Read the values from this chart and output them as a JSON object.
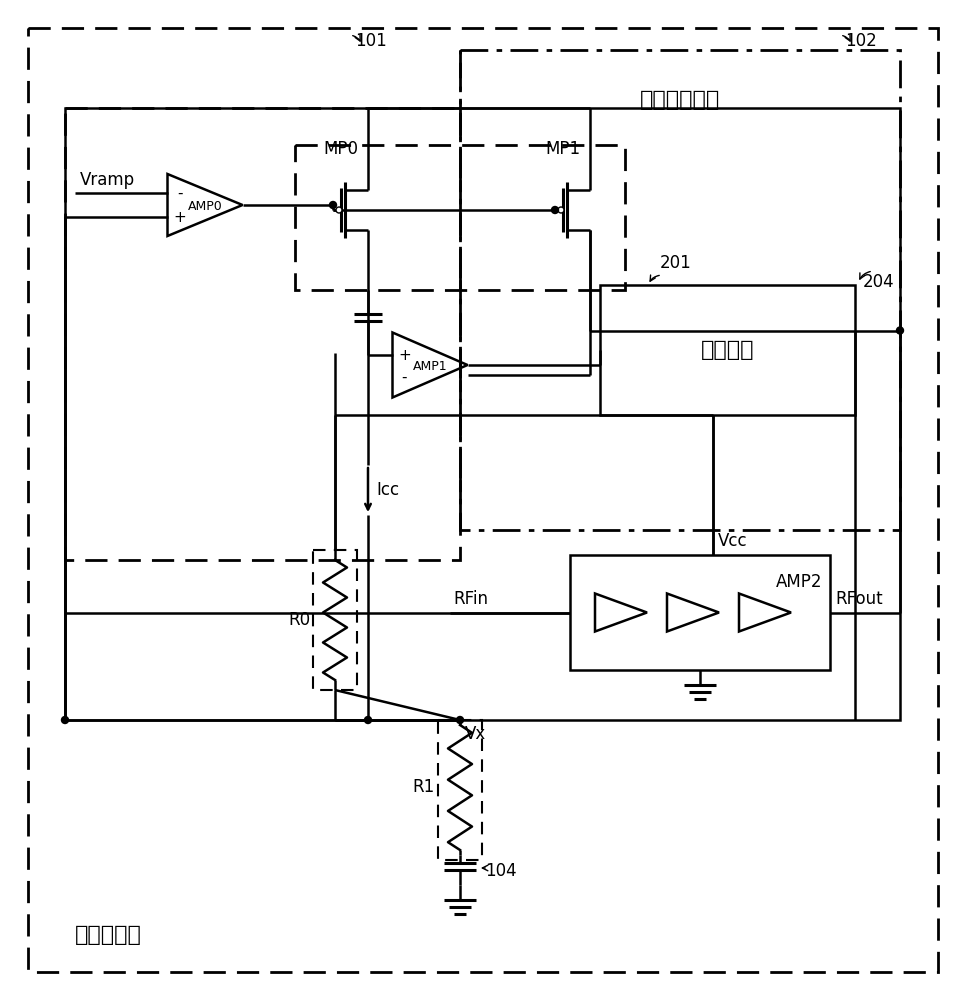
{
  "bg_color": "#ffffff",
  "label_gonglv": "功率控制器",
  "label_dianliu": "电流采样模块",
  "label_zhuanhuan": "转换装置",
  "label_vramp": "Vramp",
  "label_amp0": "AMP0",
  "label_amp1": "AMP1",
  "label_amp2": "AMP2",
  "label_mp0": "MP0",
  "label_mp1": "MP1",
  "label_icc": "Icc",
  "label_r0": "R0",
  "label_r1": "R1",
  "label_vx": "Vx",
  "label_vcc": "Vcc",
  "label_rfin": "RFin",
  "label_rfout": "RFout",
  "label_101": "101",
  "label_102": "102",
  "label_201": "201",
  "label_204": "204",
  "label_104": "104",
  "font_size": 12,
  "font_size_large": 16
}
